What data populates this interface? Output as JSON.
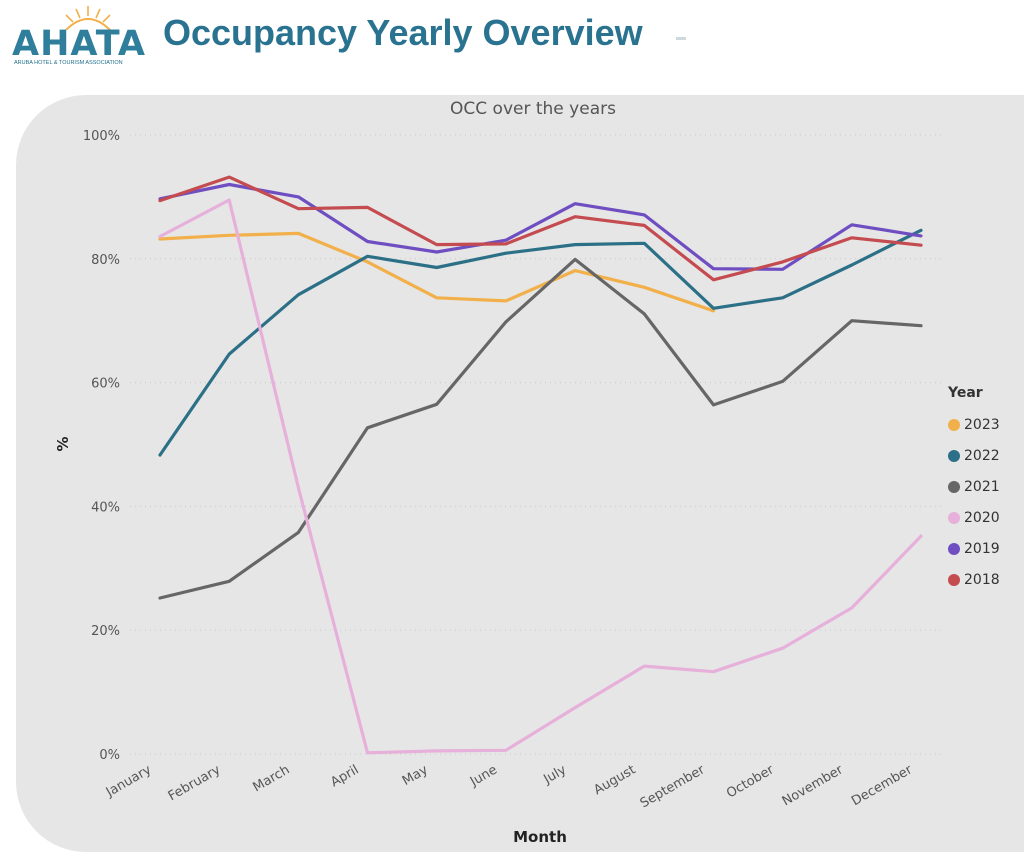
{
  "header": {
    "logo_text": "AHATA",
    "logo_subtitle": "ARUBA HOTEL & TOURISM ASSOCIATION",
    "title": "Occupancy Yearly Overview"
  },
  "legend": {
    "title": "Year"
  },
  "colors": {
    "title": "#2a7390",
    "card_background": "#e6e6e6"
  },
  "chart_data": {
    "type": "line",
    "title": "OCC over the years",
    "xlabel": "Month",
    "ylabel": "%",
    "ylim": [
      0,
      100
    ],
    "yticks": [
      "0%",
      "20%",
      "40%",
      "60%",
      "80%",
      "100%"
    ],
    "grid": true,
    "legend_position": "right",
    "categories": [
      "January",
      "February",
      "March",
      "April",
      "May",
      "June",
      "July",
      "August",
      "September",
      "October",
      "November",
      "December"
    ],
    "series": [
      {
        "name": "2023",
        "color": "#f2b04b",
        "values": [
          83.2,
          83.8,
          84.1,
          79.5,
          73.7,
          73.2,
          78.1,
          75.4,
          71.6,
          null,
          null,
          null
        ]
      },
      {
        "name": "2022",
        "color": "#2c7087",
        "values": [
          48.3,
          64.6,
          74.2,
          80.4,
          78.6,
          80.9,
          82.3,
          82.5,
          72.0,
          73.7,
          79.0,
          84.6
        ]
      },
      {
        "name": "2021",
        "color": "#666666",
        "values": [
          25.2,
          27.9,
          35.8,
          52.7,
          56.5,
          69.8,
          79.9,
          71.1,
          56.4,
          60.2,
          70.0,
          69.2
        ]
      },
      {
        "name": "2020",
        "color": "#e6b0da",
        "values": [
          83.6,
          89.5,
          43.0,
          0.2,
          0.5,
          0.6,
          7.5,
          14.2,
          13.3,
          17.1,
          23.6,
          35.2
        ]
      },
      {
        "name": "2019",
        "color": "#6f4ec2",
        "values": [
          89.7,
          92.0,
          90.0,
          82.8,
          81.1,
          83.0,
          88.9,
          87.1,
          78.4,
          78.3,
          85.5,
          83.7
        ]
      },
      {
        "name": "2018",
        "color": "#c44b4f",
        "values": [
          89.4,
          93.2,
          88.1,
          88.3,
          82.3,
          82.4,
          86.8,
          85.4,
          76.6,
          79.5,
          83.4,
          82.2
        ]
      }
    ]
  }
}
